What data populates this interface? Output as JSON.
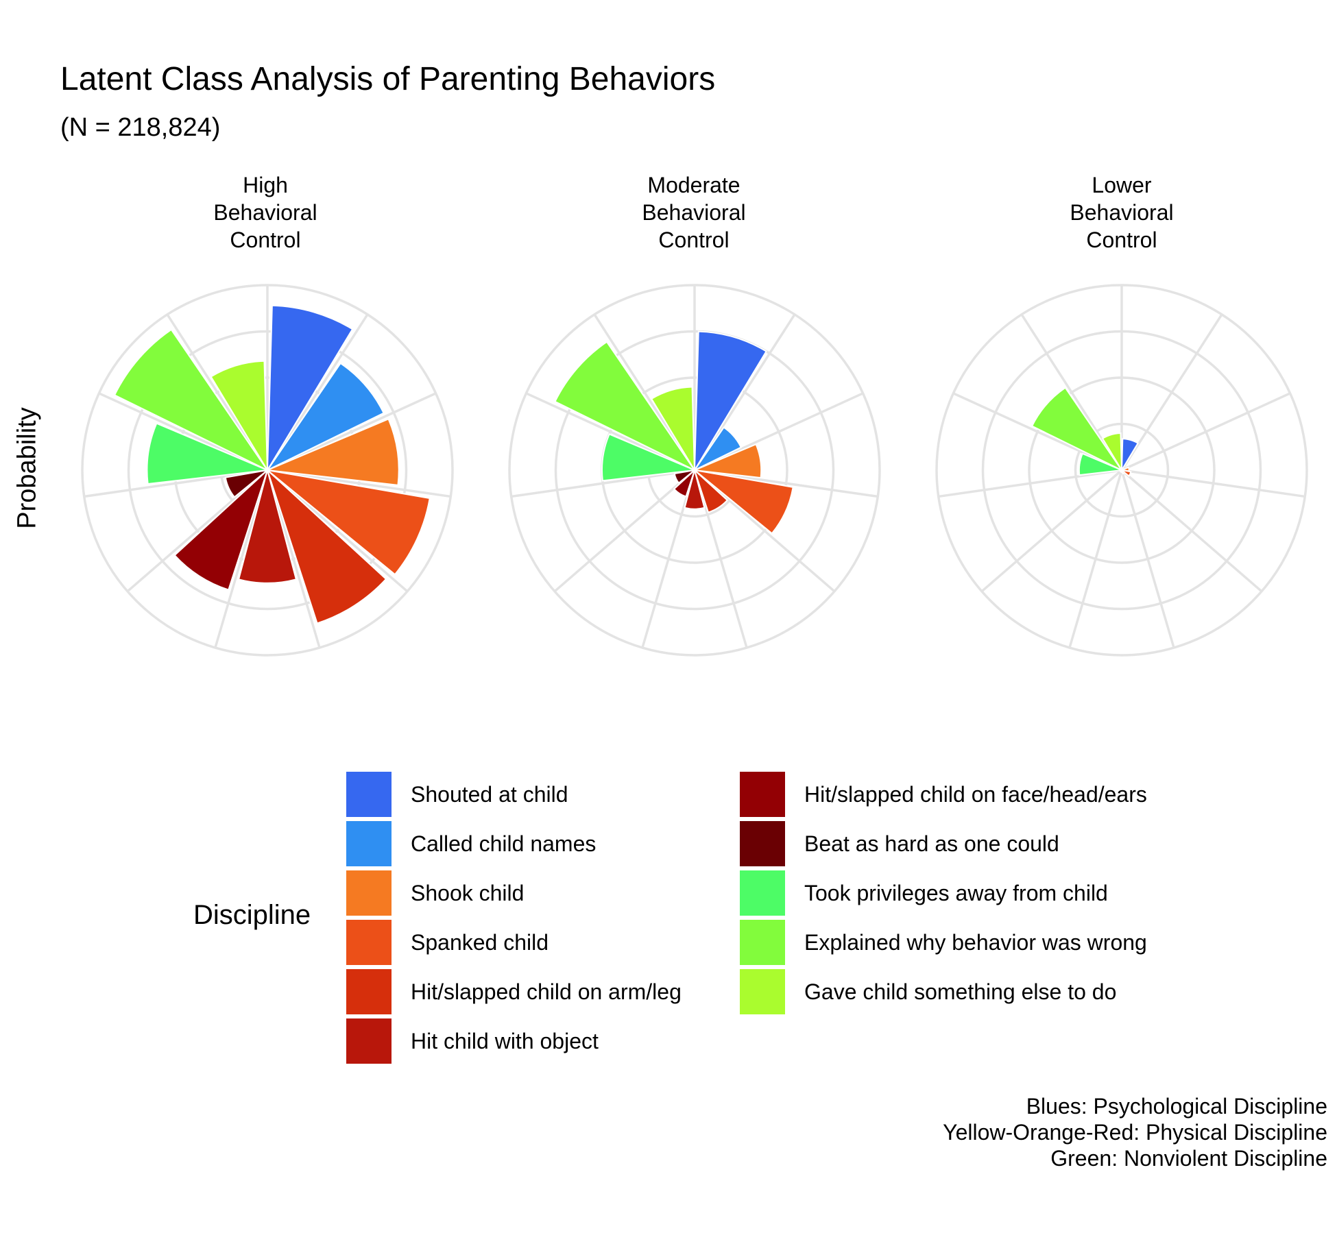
{
  "chart_data": {
    "type": "polar-bar",
    "title": "Latent Class Analysis of Parenting Behaviors",
    "subtitle": "(N = 218,824)",
    "ylabel": "Probability",
    "legend_title": "Discipline",
    "legend_position": "bottom",
    "grid": true,
    "categories": [
      "Shouted at child",
      "Called child names",
      "Shook child",
      "Spanked child",
      "Hit/slapped child on arm/leg",
      "Hit child with object",
      "Hit/slapped child on face/head/ears",
      "Beat as hard as one could",
      "Took privileges away from child",
      "Explained why behavior was wrong",
      "Gave child something else to do"
    ],
    "colors": [
      "#3668f0",
      "#2f8ff2",
      "#f57a22",
      "#ec5018",
      "#d62f0c",
      "#b8170b",
      "#930004",
      "#6a0003",
      "#4dfc66",
      "#82fc3c",
      "#aafc2e"
    ],
    "facets": [
      {
        "name": [
          "High",
          "Behavioral",
          "Control"
        ],
        "values": [
          0.89,
          0.7,
          0.71,
          0.89,
          0.87,
          0.61,
          0.68,
          0.23,
          0.65,
          0.92,
          0.59
        ]
      },
      {
        "name": [
          "Moderate",
          "Behavioral",
          "Control"
        ],
        "values": [
          0.75,
          0.28,
          0.36,
          0.54,
          0.24,
          0.21,
          0.15,
          0.11,
          0.5,
          0.84,
          0.45
        ]
      },
      {
        "name": [
          "Lower",
          "Behavioral",
          "Control"
        ],
        "values": [
          0.17,
          0.0,
          0.04,
          0.05,
          0.02,
          0.01,
          0.01,
          0.0,
          0.23,
          0.54,
          0.2
        ]
      }
    ],
    "caption": [
      "Blues: Psychological Discipline",
      "Yellow-Orange-Red: Physical Discipline",
      "Green: Nonviolent Discipline"
    ]
  }
}
